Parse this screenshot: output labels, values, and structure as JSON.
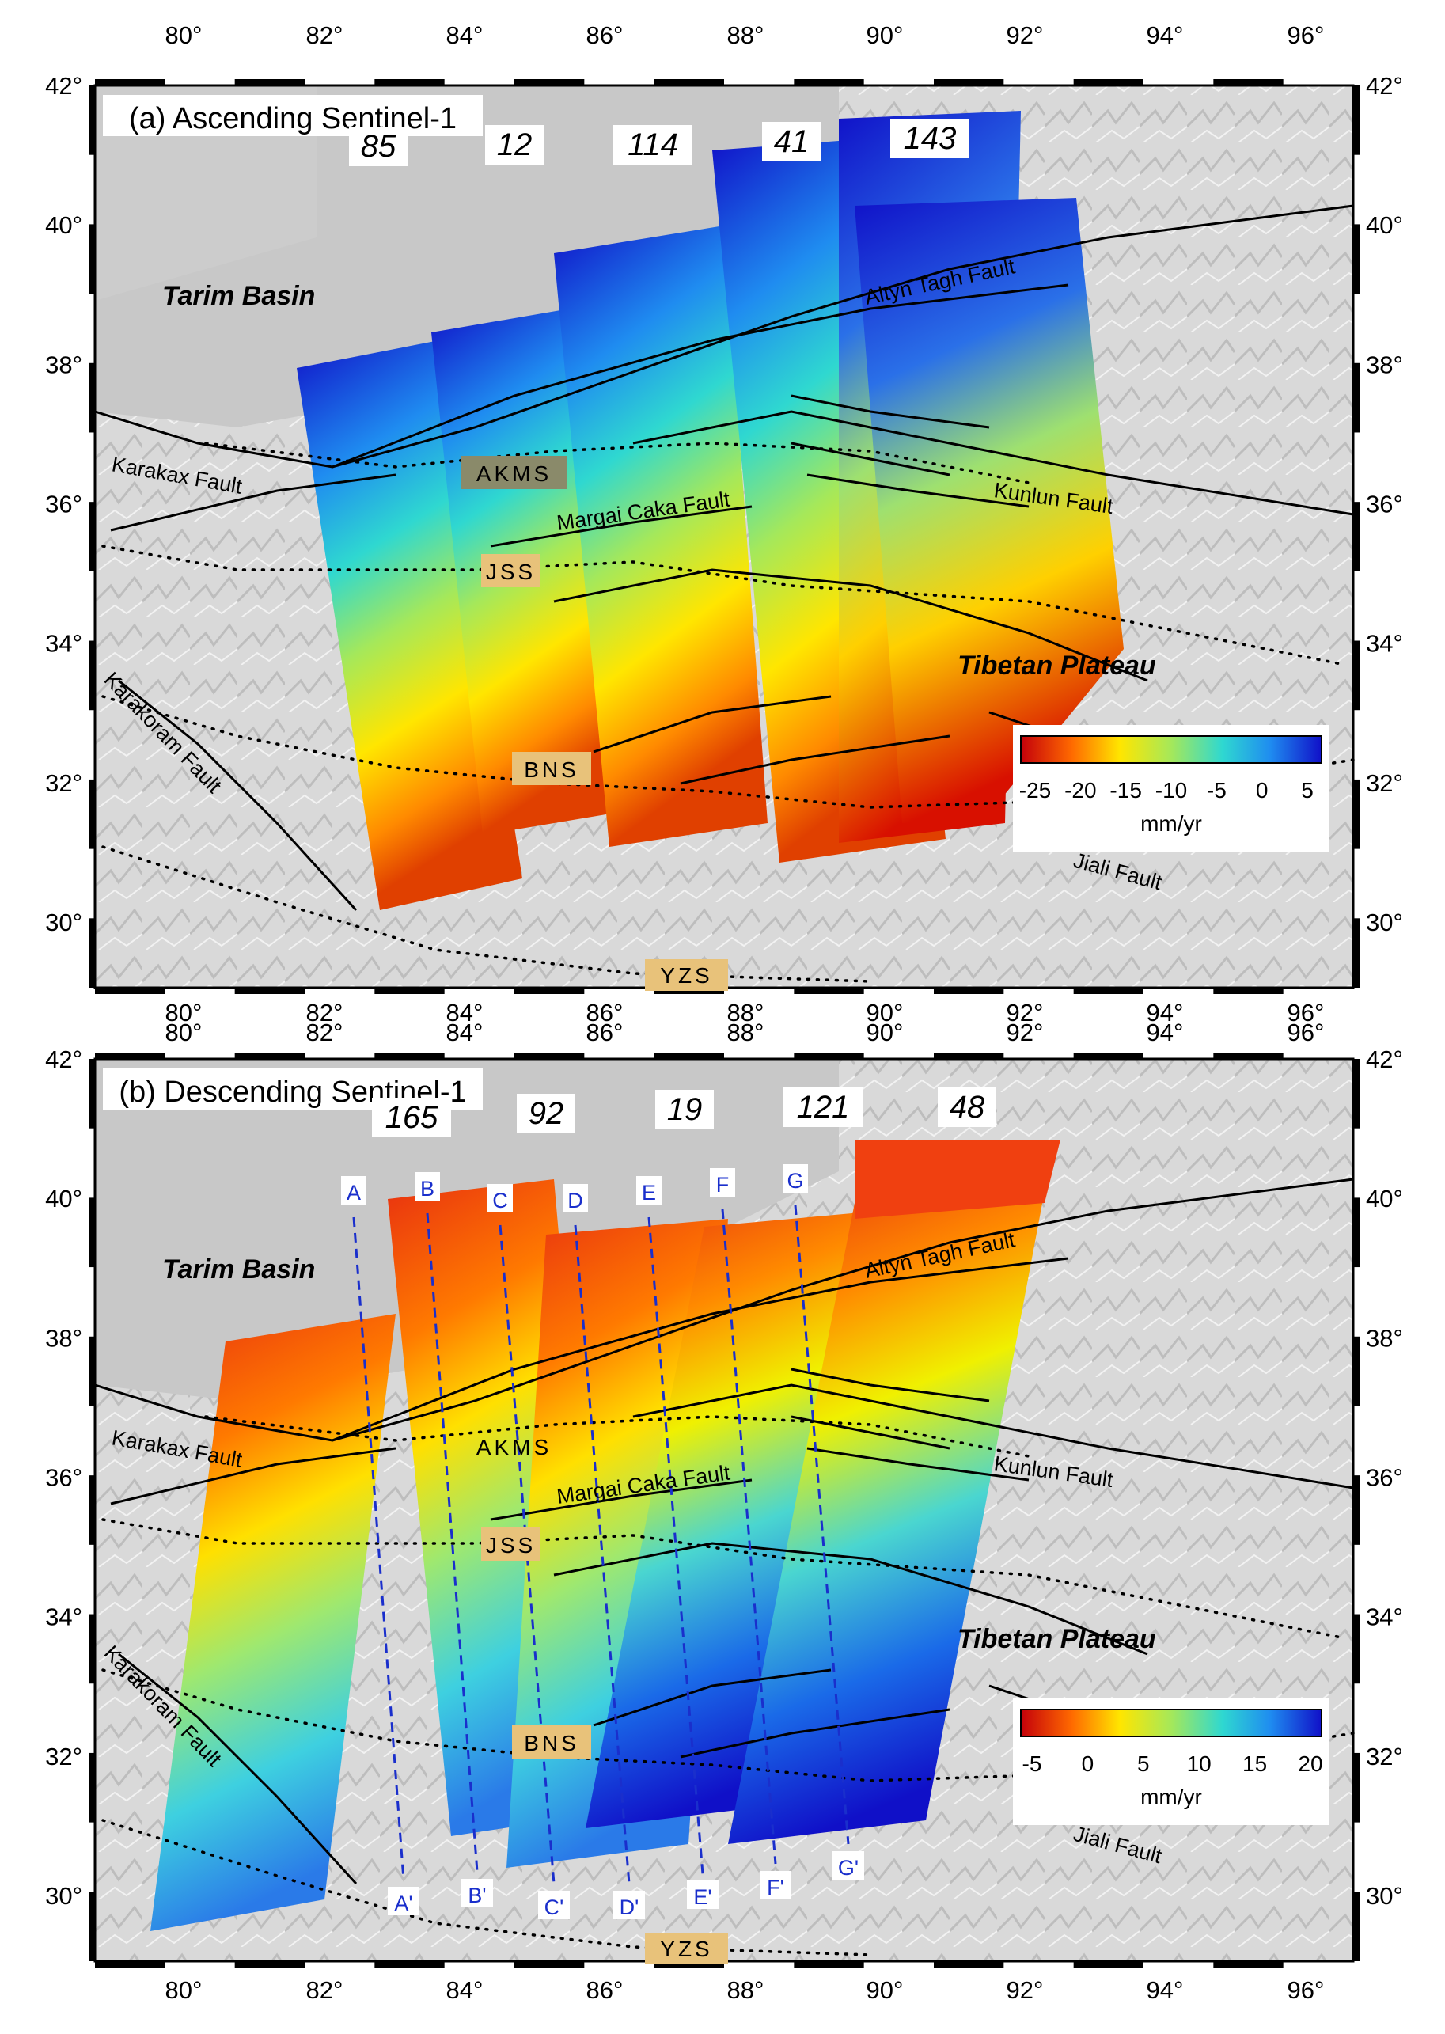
{
  "figure": {
    "lon_ticks": [
      "80°",
      "82°",
      "84°",
      "86°",
      "88°",
      "90°",
      "92°",
      "94°",
      "96°"
    ],
    "lat_ticks": [
      "42°",
      "40°",
      "38°",
      "36°",
      "34°",
      "32°",
      "30°"
    ],
    "panels": [
      {
        "title": "(a) Ascending Sentinel-1",
        "tracks": [
          "85",
          "12",
          "114",
          "41",
          "143"
        ],
        "colorbar": {
          "ticks": [
            "-25",
            "-20",
            "-15",
            "-10",
            "-5",
            "0",
            "5"
          ],
          "unit": "mm/yr",
          "colors": [
            "#c4000a",
            "#ff6a00",
            "#ffe600",
            "#a5e85a",
            "#2fd8d0",
            "#1f8cf0",
            "#1010c8"
          ]
        },
        "profiles": null
      },
      {
        "title": "(b) Descending Sentinel-1",
        "tracks": [
          "165",
          "92",
          "19",
          "121",
          "48"
        ],
        "colorbar": {
          "ticks": [
            "-5",
            "0",
            "5",
            "10",
            "15",
            "20"
          ],
          "unit": "mm/yr",
          "colors": [
            "#c4000a",
            "#ff6a00",
            "#ffe600",
            "#a5e85a",
            "#2fd8d0",
            "#1f8cf0",
            "#1010c8"
          ]
        },
        "profiles": {
          "start": [
            "A",
            "B",
            "C",
            "D",
            "E",
            "F",
            "G"
          ],
          "end": [
            "A'",
            "B'",
            "C'",
            "D'",
            "E'",
            "F'",
            "G'"
          ]
        }
      }
    ],
    "labels": {
      "tarim": "Tarim Basin",
      "tibet": "Tibetan Plateau",
      "altyn": "Altyn Tagh Fault",
      "karakax": "Karakax Fault",
      "margai": "Margai Caka Fault",
      "kunlun": "Kunlun Fault",
      "karakoram": "Karakoram Fault",
      "jiali": "Jiali Fault",
      "akms": "AKMS",
      "jss": "JSS",
      "bns": "BNS",
      "yzs": "YZS"
    }
  }
}
